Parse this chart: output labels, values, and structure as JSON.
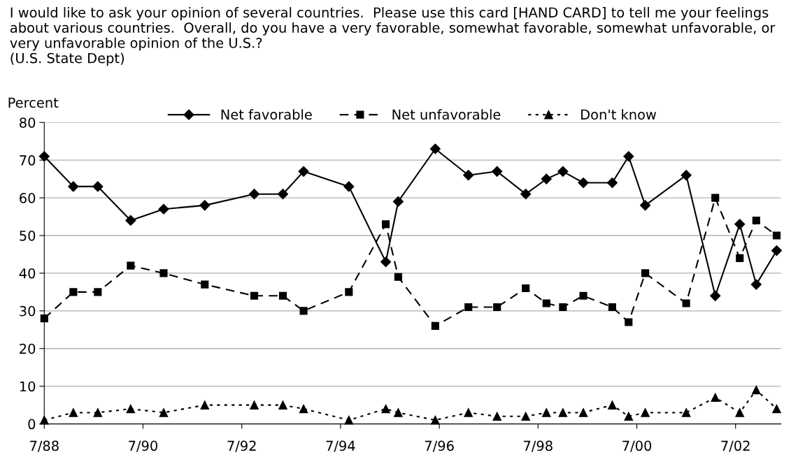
{
  "chart_data": {
    "type": "line",
    "title": "I would like to ask your opinion of several countries.  Please use this card [HAND CARD] to tell me your feelings about various countries.  Overall, do you have a very favorable, somewhat favorable, somewhat unfavorable, or very unfavorable opinion of the U.S.?\n(U.S. State Dept)",
    "ylabel": "Percent",
    "x": [
      "1988-07",
      "1989-02",
      "1989-08",
      "1990-04",
      "1990-12",
      "1991-10",
      "1992-10",
      "1993-05",
      "1993-10",
      "1994-09",
      "1995-06",
      "1995-09",
      "1996-06",
      "1997-02",
      "1997-09",
      "1998-04",
      "1998-09",
      "1999-01",
      "1999-06",
      "2000-01",
      "2000-05",
      "2000-09",
      "2001-07",
      "2002-02",
      "2002-08",
      "2002-12",
      "2003-05"
    ],
    "series": [
      {
        "name": "Net favorable",
        "color": "#000000",
        "marker": "diamond",
        "line_style": "solid",
        "values": [
          71,
          63,
          63,
          54,
          57,
          58,
          61,
          61,
          67,
          63,
          43,
          59,
          73,
          66,
          67,
          61,
          65,
          67,
          64,
          64,
          71,
          58,
          66,
          34,
          53,
          37,
          46
        ]
      },
      {
        "name": "Net unfavorable",
        "color": "#000000",
        "marker": "square",
        "line_style": "dashed",
        "values": [
          28,
          35,
          35,
          42,
          40,
          37,
          34,
          34,
          30,
          35,
          53,
          39,
          26,
          31,
          31,
          36,
          32,
          31,
          34,
          31,
          27,
          40,
          32,
          60,
          44,
          54,
          50
        ]
      },
      {
        "name": "Don't know",
        "color": "#000000",
        "marker": "triangle",
        "line_style": "dotted",
        "values": [
          1,
          3,
          3,
          4,
          3,
          5,
          5,
          5,
          4,
          1,
          4,
          3,
          1,
          3,
          2,
          2,
          3,
          3,
          3,
          5,
          2,
          3,
          3,
          7,
          3,
          9,
          4
        ]
      }
    ],
    "xlim": [
      "1988-07",
      "2003-06"
    ],
    "xticks": [
      {
        "value": "1988-07",
        "label": "7/88"
      },
      {
        "value": "1990-07",
        "label": "7/90"
      },
      {
        "value": "1992-07",
        "label": "7/92"
      },
      {
        "value": "1994-07",
        "label": "7/94"
      },
      {
        "value": "1996-07",
        "label": "7/96"
      },
      {
        "value": "1998-07",
        "label": "7/98"
      },
      {
        "value": "2000-07",
        "label": "7/00"
      },
      {
        "value": "2002-07",
        "label": "7/02"
      }
    ],
    "ylim": [
      0,
      80
    ],
    "yticks": [
      0,
      10,
      20,
      30,
      40,
      50,
      60,
      70,
      80
    ],
    "grid": "y",
    "legend": "top"
  }
}
